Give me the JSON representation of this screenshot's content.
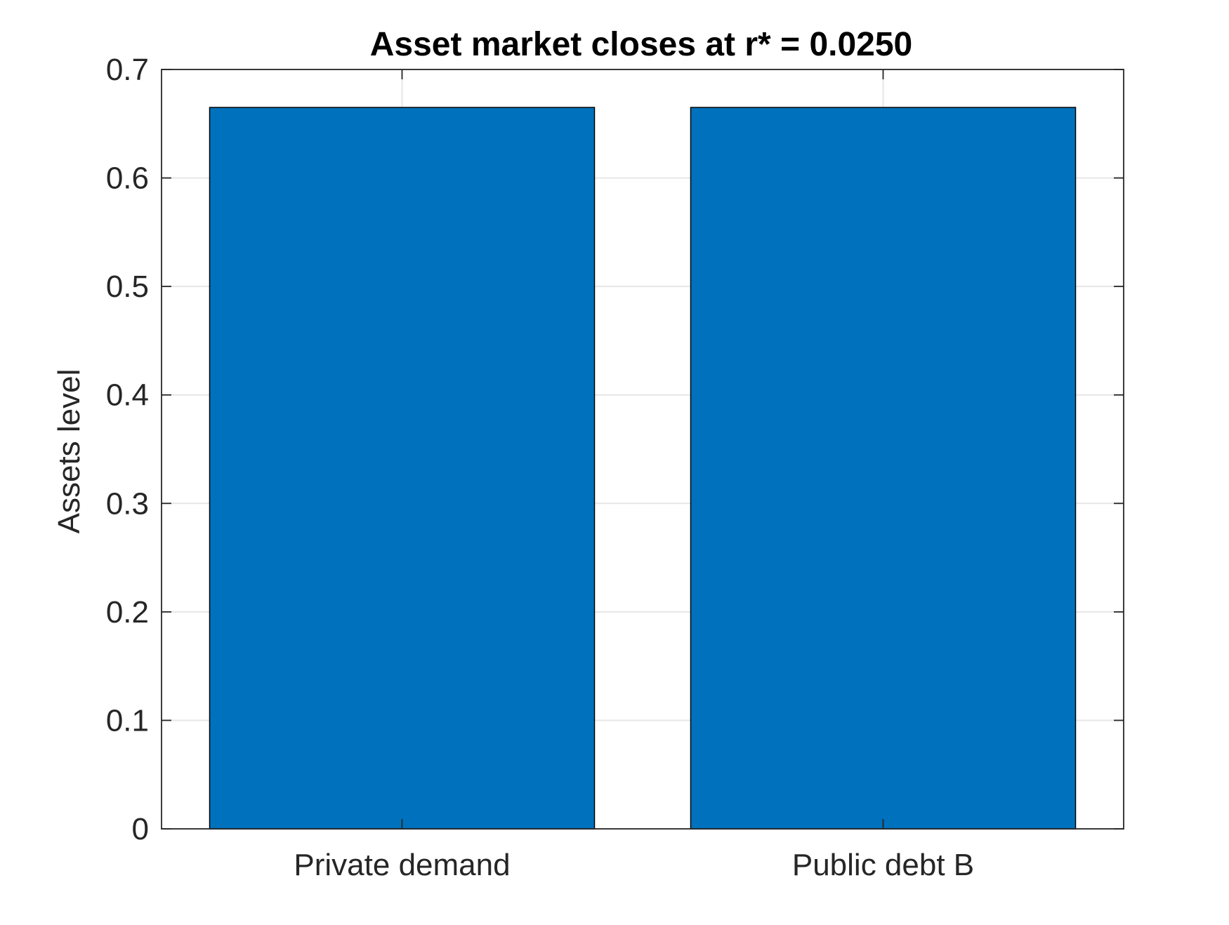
{
  "chart_data": {
    "type": "bar",
    "title": "Asset market closes at r* = 0.0250",
    "xlabel": "",
    "ylabel": "Assets level",
    "categories": [
      "Private demand",
      "Public debt B"
    ],
    "series": [
      {
        "values": [
          0.665,
          0.665
        ]
      }
    ],
    "ylim": [
      0,
      0.7
    ],
    "yticks": [
      0,
      0.1,
      0.2,
      0.3,
      0.4,
      0.5,
      0.6,
      0.7
    ],
    "ytick_labels": [
      "0",
      "0.1",
      "0.2",
      "0.3",
      "0.4",
      "0.5",
      "0.6",
      "0.7"
    ],
    "grid": true,
    "legend": "none",
    "bar_color": "#0072bd",
    "bar_edge_color": "#000000",
    "axis_color": "#262626",
    "grid_color": "#e6e6e6"
  }
}
